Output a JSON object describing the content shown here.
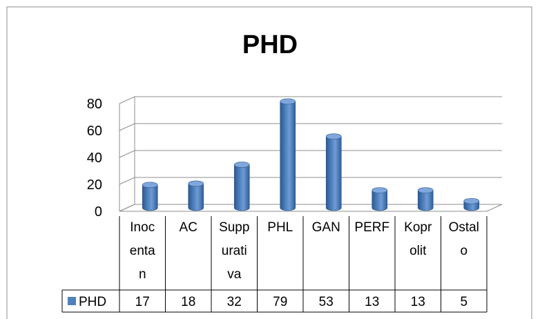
{
  "chart_data": {
    "type": "bar",
    "title": "PHD",
    "categories": [
      [
        "Inoc",
        "enta",
        "n"
      ],
      [
        "AC"
      ],
      [
        "Supp",
        "urati",
        "va"
      ],
      [
        "PHL"
      ],
      [
        "GAN"
      ],
      [
        "PERF"
      ],
      [
        "Kopr",
        "olit"
      ],
      [
        "Ostal",
        "o"
      ]
    ],
    "series": [
      {
        "name": "PHD",
        "values": [
          17,
          18,
          32,
          79,
          53,
          13,
          13,
          5
        ]
      }
    ],
    "ylim": [
      0,
      80
    ],
    "yticks": [
      "0",
      "20",
      "40",
      "60",
      "80"
    ],
    "grid": true,
    "data_table": true,
    "color": "#4f81bd"
  }
}
